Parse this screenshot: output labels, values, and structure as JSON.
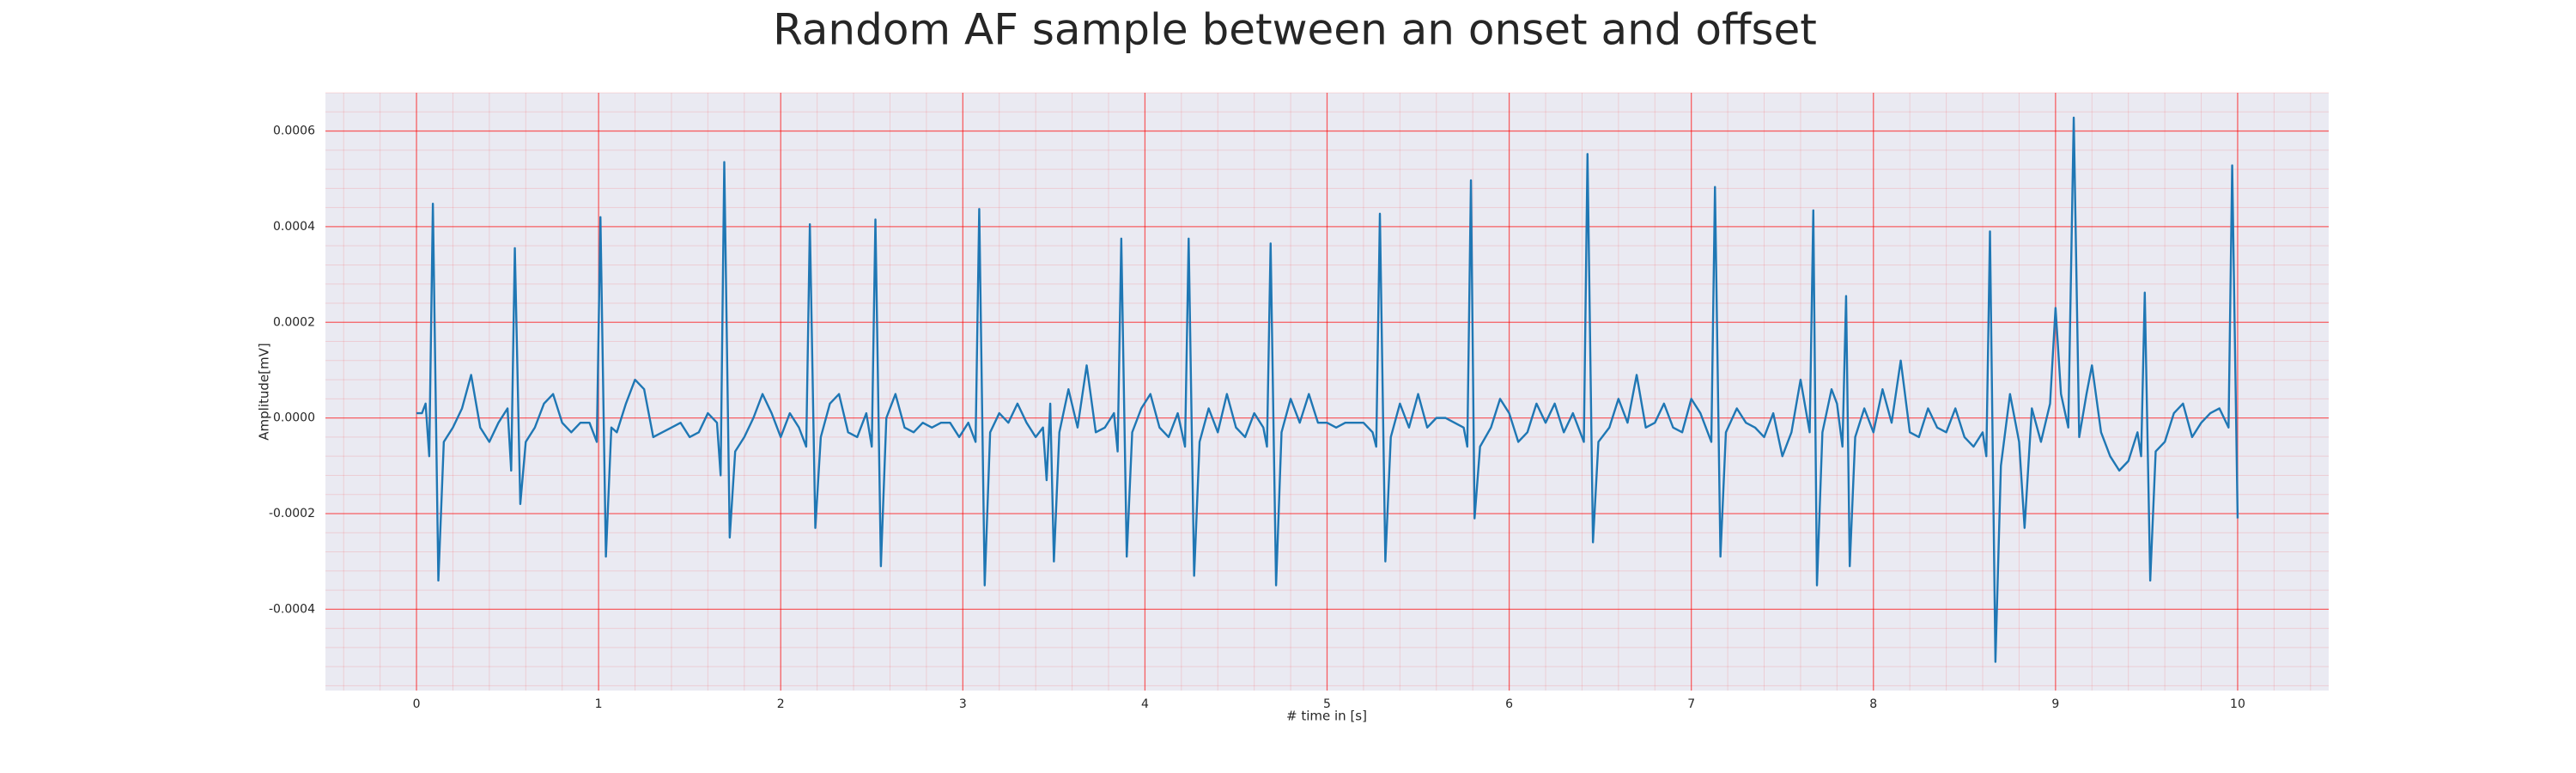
{
  "chart_data": {
    "type": "line",
    "title": "Random AF sample between an onset and offset",
    "xlabel": "# time in [s]",
    "ylabel": "Amplitude[mV]",
    "color": "#1f77b4",
    "background": "#eaeaf2",
    "grid": true,
    "minor_grid": true,
    "grid_color": "#ff0000",
    "xlim": [
      -0.5,
      10.5
    ],
    "ylim": [
      -0.00057,
      0.00068
    ],
    "xticks": [
      0,
      1,
      2,
      3,
      4,
      5,
      6,
      7,
      8,
      9,
      10
    ],
    "yticks": [
      -0.0004,
      -0.0002,
      {
        "value": 0,
        "label": "0.0000"
      },
      0.0002,
      0.0004,
      0.0006
    ],
    "x": [
      0.0,
      0.03,
      0.05,
      0.07,
      0.09,
      0.12,
      0.15,
      0.2,
      0.25,
      0.3,
      0.35,
      0.4,
      0.45,
      0.5,
      0.52,
      0.54,
      0.57,
      0.6,
      0.65,
      0.7,
      0.75,
      0.8,
      0.85,
      0.9,
      0.95,
      0.99,
      1.01,
      1.04,
      1.07,
      1.1,
      1.15,
      1.2,
      1.25,
      1.3,
      1.35,
      1.4,
      1.45,
      1.5,
      1.55,
      1.6,
      1.65,
      1.67,
      1.69,
      1.72,
      1.75,
      1.8,
      1.85,
      1.9,
      1.95,
      2.0,
      2.05,
      2.1,
      2.14,
      2.16,
      2.19,
      2.22,
      2.27,
      2.32,
      2.37,
      2.42,
      2.47,
      2.5,
      2.52,
      2.55,
      2.58,
      2.63,
      2.68,
      2.73,
      2.78,
      2.83,
      2.88,
      2.93,
      2.98,
      3.03,
      3.07,
      3.09,
      3.12,
      3.15,
      3.2,
      3.25,
      3.3,
      3.35,
      3.4,
      3.44,
      3.46,
      3.48,
      3.5,
      3.53,
      3.58,
      3.63,
      3.68,
      3.73,
      3.78,
      3.83,
      3.85,
      3.87,
      3.9,
      3.93,
      3.98,
      4.03,
      4.08,
      4.13,
      4.18,
      4.22,
      4.24,
      4.27,
      4.3,
      4.35,
      4.4,
      4.45,
      4.5,
      4.55,
      4.6,
      4.65,
      4.67,
      4.69,
      4.72,
      4.75,
      4.8,
      4.85,
      4.9,
      4.95,
      5.0,
      5.05,
      5.1,
      5.15,
      5.2,
      5.25,
      5.27,
      5.29,
      5.32,
      5.35,
      5.4,
      5.45,
      5.5,
      5.55,
      5.6,
      5.65,
      5.7,
      5.75,
      5.77,
      5.79,
      5.81,
      5.84,
      5.9,
      5.95,
      6.0,
      6.05,
      6.1,
      6.15,
      6.2,
      6.25,
      6.3,
      6.35,
      6.41,
      6.43,
      6.46,
      6.49,
      6.55,
      6.6,
      6.65,
      6.7,
      6.75,
      6.8,
      6.85,
      6.9,
      6.95,
      7.0,
      7.05,
      7.11,
      7.13,
      7.16,
      7.19,
      7.25,
      7.3,
      7.35,
      7.4,
      7.45,
      7.5,
      7.55,
      7.6,
      7.65,
      7.67,
      7.69,
      7.72,
      7.77,
      7.8,
      7.83,
      7.85,
      7.87,
      7.9,
      7.95,
      8.0,
      8.05,
      8.1,
      8.15,
      8.2,
      8.25,
      8.3,
      8.35,
      8.4,
      8.45,
      8.5,
      8.55,
      8.6,
      8.62,
      8.64,
      8.67,
      8.7,
      8.75,
      8.8,
      8.83,
      8.87,
      8.92,
      8.97,
      9.0,
      9.03,
      9.07,
      9.1,
      9.13,
      9.17,
      9.2,
      9.25,
      9.3,
      9.35,
      9.4,
      9.45,
      9.47,
      9.49,
      9.52,
      9.55,
      9.6,
      9.65,
      9.7,
      9.75,
      9.8,
      9.85,
      9.9,
      9.95,
      9.97,
      10.0
    ],
    "values": [
      1e-05,
      1e-05,
      3e-05,
      -8e-05,
      0.000448,
      -0.00034,
      -5e-05,
      -2e-05,
      2e-05,
      9e-05,
      -2e-05,
      -5e-05,
      -1e-05,
      2e-05,
      -0.00011,
      0.000355,
      -0.00018,
      -5e-05,
      -2e-05,
      3e-05,
      5e-05,
      -1e-05,
      -3e-05,
      -1e-05,
      -1e-05,
      -5e-05,
      0.00042,
      -0.00029,
      -2e-05,
      -3e-05,
      3e-05,
      8e-05,
      6e-05,
      -4e-05,
      -3e-05,
      -2e-05,
      -1e-05,
      -4e-05,
      -3e-05,
      1e-05,
      -1e-05,
      -0.00012,
      0.000535,
      -0.00025,
      -7e-05,
      -4e-05,
      0,
      5e-05,
      1e-05,
      -4e-05,
      1e-05,
      -2e-05,
      -6e-05,
      0.000405,
      -0.00023,
      -4e-05,
      3e-05,
      5e-05,
      -3e-05,
      -4e-05,
      1e-05,
      -6e-05,
      0.000415,
      -0.00031,
      0,
      5e-05,
      -2e-05,
      -3e-05,
      -1e-05,
      -2e-05,
      -1e-05,
      -1e-05,
      -4e-05,
      -1e-05,
      -5e-05,
      0.000437,
      -0.00035,
      -3e-05,
      1e-05,
      -1e-05,
      3e-05,
      -1e-05,
      -4e-05,
      -2e-05,
      -0.00013,
      3e-05,
      -0.0003,
      -3e-05,
      6e-05,
      -2e-05,
      0.00011,
      -3e-05,
      -2e-05,
      1e-05,
      -7e-05,
      0.000375,
      -0.00029,
      -3e-05,
      2e-05,
      5e-05,
      -2e-05,
      -4e-05,
      1e-05,
      -6e-05,
      0.000375,
      -0.00033,
      -5e-05,
      2e-05,
      -3e-05,
      5e-05,
      -2e-05,
      -4e-05,
      1e-05,
      -2e-05,
      -6e-05,
      0.000365,
      -0.00035,
      -3e-05,
      4e-05,
      -1e-05,
      5e-05,
      -1e-05,
      -1e-05,
      -2e-05,
      -1e-05,
      -1e-05,
      -1e-05,
      -3e-05,
      -6e-05,
      0.000427,
      -0.0003,
      -4e-05,
      3e-05,
      -2e-05,
      5e-05,
      -2e-05,
      0,
      0,
      -1e-05,
      -2e-05,
      -6e-05,
      0.000497,
      -0.00021,
      -6e-05,
      -2e-05,
      4e-05,
      1e-05,
      -5e-05,
      -3e-05,
      3e-05,
      -1e-05,
      3e-05,
      -3e-05,
      1e-05,
      -5e-05,
      0.000552,
      -0.00026,
      -5e-05,
      -2e-05,
      4e-05,
      -1e-05,
      9e-05,
      -2e-05,
      -1e-05,
      3e-05,
      -2e-05,
      -3e-05,
      4e-05,
      1e-05,
      -5e-05,
      0.000483,
      -0.00029,
      -3e-05,
      2e-05,
      -1e-05,
      -2e-05,
      -4e-05,
      1e-05,
      -8e-05,
      -3e-05,
      8e-05,
      -3e-05,
      0.000434,
      -0.00035,
      -3e-05,
      6e-05,
      3e-05,
      -6e-05,
      0.000255,
      -0.00031,
      -4e-05,
      2e-05,
      -3e-05,
      6e-05,
      -1e-05,
      0.00012,
      -3e-05,
      -4e-05,
      2e-05,
      -2e-05,
      -3e-05,
      2e-05,
      -4e-05,
      -6e-05,
      -3e-05,
      -8e-05,
      0.00039,
      -0.00051,
      -0.0001,
      5e-05,
      -5e-05,
      -0.00023,
      2e-05,
      -5e-05,
      3e-05,
      0.00023,
      5e-05,
      -2e-05,
      0.000628,
      -4e-05,
      5e-05,
      0.00011,
      -3e-05,
      -8e-05,
      -0.00011,
      -9e-05,
      -3e-05,
      -8e-05,
      0.000262,
      -0.00034,
      -7e-05,
      -5e-05,
      1e-05,
      3e-05,
      -4e-05,
      -1e-05,
      1e-05,
      2e-05,
      -2e-05,
      0.000528,
      -0.00021
    ]
  }
}
